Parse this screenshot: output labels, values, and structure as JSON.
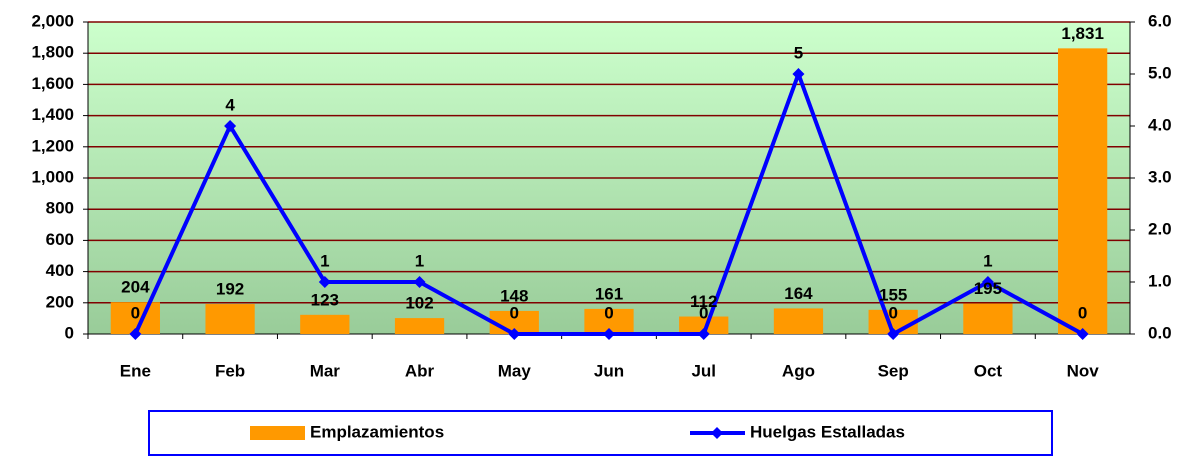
{
  "chart_data": {
    "type": "bar",
    "categories": [
      "Ene",
      "Feb",
      "Mar",
      "Abr",
      "May",
      "Jun",
      "Jul",
      "Ago",
      "Sep",
      "Oct",
      "Nov"
    ],
    "series": [
      {
        "name": "Emplazamientos",
        "type": "bar",
        "color": "#ff9900",
        "values": [
          204,
          192,
          123,
          102,
          148,
          161,
          112,
          164,
          155,
          195,
          1831
        ],
        "value_labels": [
          "204",
          "192",
          "123",
          "102",
          "148",
          "161",
          "112",
          "164",
          "155",
          "195",
          "1,831"
        ]
      },
      {
        "name": "Huelgas Estalladas",
        "type": "line",
        "axis": "y2",
        "color": "#0000ff",
        "values": [
          0,
          4,
          1,
          1,
          0,
          0,
          0,
          5,
          0,
          1,
          0
        ]
      }
    ],
    "ylim": [
      0,
      2000
    ],
    "yticks": [
      0,
      200,
      400,
      600,
      800,
      {
        "value": 1000,
        "label": "1,000"
      },
      {
        "value": 1200,
        "label": "1,200"
      },
      {
        "value": 1400,
        "label": "1,400"
      },
      {
        "value": 1600,
        "label": "1,600"
      },
      {
        "value": 1800,
        "label": "1,800"
      },
      {
        "value": 2000,
        "label": "2,000"
      }
    ],
    "y2lim": [
      0,
      6
    ],
    "y2ticks": [
      {
        "value": 0,
        "label": "0.0"
      },
      {
        "value": 1,
        "label": "1.0"
      },
      {
        "value": 2,
        "label": "2.0"
      },
      {
        "value": 3,
        "label": "3.0"
      },
      {
        "value": 4,
        "label": "4.0"
      },
      {
        "value": 5,
        "label": "5.0"
      },
      {
        "value": 6,
        "label": "6.0"
      }
    ],
    "grid": true,
    "grid_color": "#800000",
    "legend": "bottom"
  }
}
